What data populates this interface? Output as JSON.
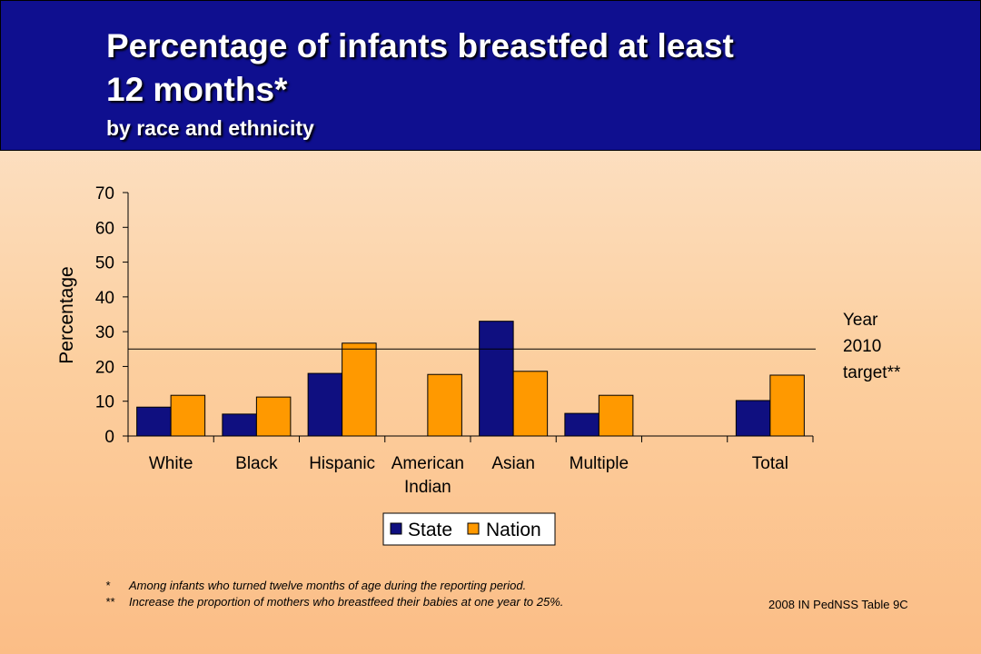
{
  "header": {
    "title_lines": [
      "Percentage of infants breastfed at least",
      "12 months*"
    ],
    "subtitle": "by race and ethnicity"
  },
  "colors": {
    "header_bg": "#0f0f8f",
    "state": "#0f0f80",
    "nation": "#ff9900"
  },
  "chart_data": {
    "type": "bar",
    "categories": [
      [
        "White"
      ],
      [
        "Black"
      ],
      [
        "Hispanic"
      ],
      [
        "American",
        "Indian"
      ],
      [
        "Asian"
      ],
      [
        "Multiple"
      ],
      [
        ""
      ],
      [
        "Total"
      ]
    ],
    "series": [
      {
        "name": "State",
        "values": [
          8.3,
          6.3,
          18,
          null,
          33,
          6.5,
          null,
          10.2
        ]
      },
      {
        "name": "Nation",
        "values": [
          11.7,
          11.2,
          26.7,
          17.7,
          18.6,
          11.7,
          null,
          17.5
        ]
      }
    ],
    "ylabel": "Percentage",
    "xlabel": "",
    "ylim": [
      0,
      70
    ],
    "yticks": [
      0,
      10,
      20,
      30,
      40,
      50,
      60,
      70
    ],
    "target": {
      "value": 25,
      "label_lines": [
        "Year",
        "2010",
        "target**"
      ]
    },
    "legend_position": "bottom-center",
    "grid": false
  },
  "footnotes": [
    {
      "mark": "*",
      "text": "Among infants who turned twelve months of age during the reporting period."
    },
    {
      "mark": "**",
      "text": "Increase the proportion of mothers who breastfeed their babies at one year to 25%."
    }
  ],
  "source": "2008 IN PedNSS Table 9C"
}
